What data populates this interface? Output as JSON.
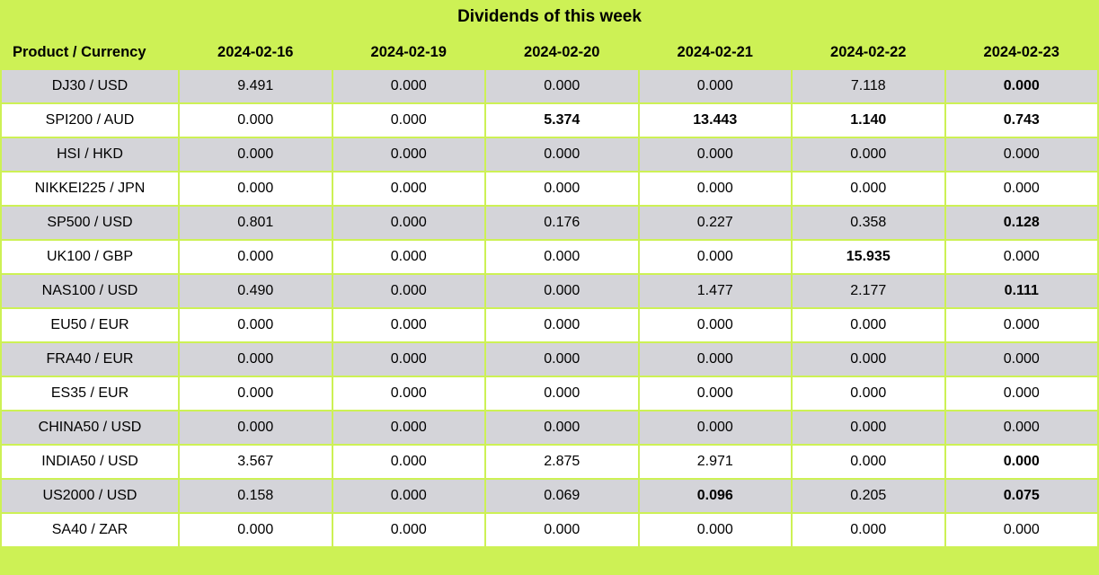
{
  "title": "Dividends of this week",
  "colors": {
    "background": "#cdf155",
    "row_stripe": "#d4d4d9",
    "row_plain": "#ffffff",
    "text": "#000000"
  },
  "table": {
    "product_header": "Product / Currency",
    "date_headers": [
      "2024-02-16",
      "2024-02-19",
      "2024-02-20",
      "2024-02-21",
      "2024-02-22",
      "2024-02-23"
    ],
    "rows": [
      {
        "product": "DJ30 / USD",
        "values": [
          "9.491",
          "0.000",
          "0.000",
          "0.000",
          "7.118",
          "0.000"
        ],
        "bold": [
          false,
          false,
          false,
          false,
          false,
          true
        ]
      },
      {
        "product": "SPI200 / AUD",
        "values": [
          "0.000",
          "0.000",
          "5.374",
          "13.443",
          "1.140",
          "0.743"
        ],
        "bold": [
          false,
          false,
          true,
          true,
          true,
          true
        ]
      },
      {
        "product": "HSI / HKD",
        "values": [
          "0.000",
          "0.000",
          "0.000",
          "0.000",
          "0.000",
          "0.000"
        ],
        "bold": [
          false,
          false,
          false,
          false,
          false,
          false
        ]
      },
      {
        "product": "NIKKEI225 / JPN",
        "values": [
          "0.000",
          "0.000",
          "0.000",
          "0.000",
          "0.000",
          "0.000"
        ],
        "bold": [
          false,
          false,
          false,
          false,
          false,
          false
        ]
      },
      {
        "product": "SP500 / USD",
        "values": [
          "0.801",
          "0.000",
          "0.176",
          "0.227",
          "0.358",
          "0.128"
        ],
        "bold": [
          false,
          false,
          false,
          false,
          false,
          true
        ]
      },
      {
        "product": "UK100 / GBP",
        "values": [
          "0.000",
          "0.000",
          "0.000",
          "0.000",
          "15.935",
          "0.000"
        ],
        "bold": [
          false,
          false,
          false,
          false,
          true,
          false
        ]
      },
      {
        "product": "NAS100 / USD",
        "values": [
          "0.490",
          "0.000",
          "0.000",
          "1.477",
          "2.177",
          "0.111"
        ],
        "bold": [
          false,
          false,
          false,
          false,
          false,
          true
        ]
      },
      {
        "product": "EU50 / EUR",
        "values": [
          "0.000",
          "0.000",
          "0.000",
          "0.000",
          "0.000",
          "0.000"
        ],
        "bold": [
          false,
          false,
          false,
          false,
          false,
          false
        ]
      },
      {
        "product": "FRA40 / EUR",
        "values": [
          "0.000",
          "0.000",
          "0.000",
          "0.000",
          "0.000",
          "0.000"
        ],
        "bold": [
          false,
          false,
          false,
          false,
          false,
          false
        ]
      },
      {
        "product": "ES35 / EUR",
        "values": [
          "0.000",
          "0.000",
          "0.000",
          "0.000",
          "0.000",
          "0.000"
        ],
        "bold": [
          false,
          false,
          false,
          false,
          false,
          false
        ]
      },
      {
        "product": "CHINA50 / USD",
        "values": [
          "0.000",
          "0.000",
          "0.000",
          "0.000",
          "0.000",
          "0.000"
        ],
        "bold": [
          false,
          false,
          false,
          false,
          false,
          false
        ]
      },
      {
        "product": "INDIA50 / USD",
        "values": [
          "3.567",
          "0.000",
          "2.875",
          "2.971",
          "0.000",
          "0.000"
        ],
        "bold": [
          false,
          false,
          false,
          false,
          false,
          true
        ]
      },
      {
        "product": "US2000 / USD",
        "values": [
          "0.158",
          "0.000",
          "0.069",
          "0.096",
          "0.205",
          "0.075"
        ],
        "bold": [
          false,
          false,
          false,
          true,
          false,
          true
        ]
      },
      {
        "product": "SA40 / ZAR",
        "values": [
          "0.000",
          "0.000",
          "0.000",
          "0.000",
          "0.000",
          "0.000"
        ],
        "bold": [
          false,
          false,
          false,
          false,
          false,
          false
        ]
      }
    ]
  },
  "chart_data": {
    "type": "table",
    "title": "Dividends of this week",
    "columns": [
      "Product / Currency",
      "2024-02-16",
      "2024-02-19",
      "2024-02-20",
      "2024-02-21",
      "2024-02-22",
      "2024-02-23"
    ],
    "rows": [
      [
        "DJ30 / USD",
        9.491,
        0.0,
        0.0,
        0.0,
        7.118,
        0.0
      ],
      [
        "SPI200 / AUD",
        0.0,
        0.0,
        5.374,
        13.443,
        1.14,
        0.743
      ],
      [
        "HSI / HKD",
        0.0,
        0.0,
        0.0,
        0.0,
        0.0,
        0.0
      ],
      [
        "NIKKEI225 / JPN",
        0.0,
        0.0,
        0.0,
        0.0,
        0.0,
        0.0
      ],
      [
        "SP500 / USD",
        0.801,
        0.0,
        0.176,
        0.227,
        0.358,
        0.128
      ],
      [
        "UK100 / GBP",
        0.0,
        0.0,
        0.0,
        0.0,
        15.935,
        0.0
      ],
      [
        "NAS100 / USD",
        0.49,
        0.0,
        0.0,
        1.477,
        2.177,
        0.111
      ],
      [
        "EU50 / EUR",
        0.0,
        0.0,
        0.0,
        0.0,
        0.0,
        0.0
      ],
      [
        "FRA40 / EUR",
        0.0,
        0.0,
        0.0,
        0.0,
        0.0,
        0.0
      ],
      [
        "ES35 / EUR",
        0.0,
        0.0,
        0.0,
        0.0,
        0.0,
        0.0
      ],
      [
        "CHINA50 / USD",
        0.0,
        0.0,
        0.0,
        0.0,
        0.0,
        0.0
      ],
      [
        "INDIA50 / USD",
        3.567,
        0.0,
        2.875,
        2.971,
        0.0,
        0.0
      ],
      [
        "US2000 / USD",
        0.158,
        0.0,
        0.069,
        0.096,
        0.205,
        0.075
      ],
      [
        "SA40 / ZAR",
        0.0,
        0.0,
        0.0,
        0.0,
        0.0,
        0.0
      ]
    ]
  }
}
